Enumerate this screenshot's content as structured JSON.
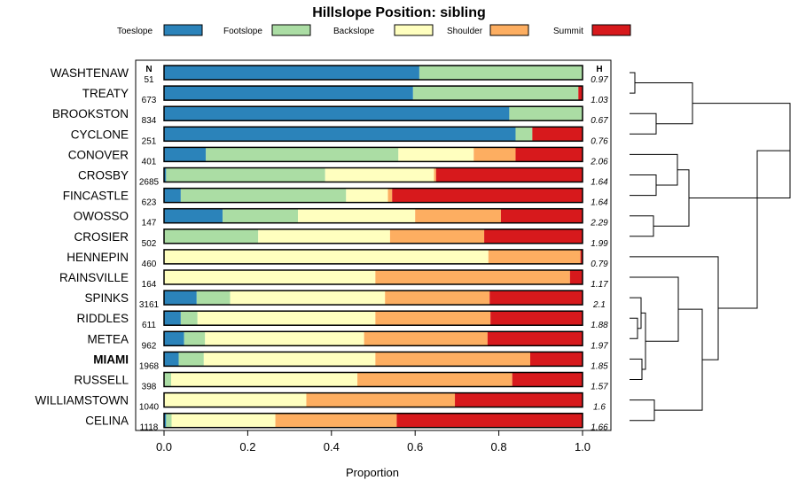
{
  "chart_data": {
    "type": "bar",
    "stacked": true,
    "orientation": "horizontal",
    "title": "Hillslope Position: sibling",
    "xlabel": "Proportion",
    "xlim": [
      0,
      1
    ],
    "xticks": [
      "0.0",
      "0.2",
      "0.4",
      "0.6",
      "0.8",
      "1.0"
    ],
    "n_header": "N",
    "h_header": "H",
    "highlight": "MIAMI",
    "legend": [
      {
        "name": "Toeslope",
        "color": "#2b83ba"
      },
      {
        "name": "Footslope",
        "color": "#abdda4"
      },
      {
        "name": "Backslope",
        "color": "#ffffbf"
      },
      {
        "name": "Shoulder",
        "color": "#fdae61"
      },
      {
        "name": "Summit",
        "color": "#d7191c"
      }
    ],
    "categories": [
      "WASHTENAW",
      "TREATY",
      "BROOKSTON",
      "CYCLONE",
      "CONOVER",
      "CROSBY",
      "FINCASTLE",
      "OWOSSO",
      "CROSIER",
      "HENNEPIN",
      "RAINSVILLE",
      "SPINKS",
      "RIDDLES",
      "METEA",
      "MIAMI",
      "RUSSELL",
      "WILLIAMSTOWN",
      "CELINA"
    ],
    "n": [
      "51",
      "673",
      "834",
      "251",
      "401",
      "2685",
      "623",
      "147",
      "502",
      "460",
      "164",
      "3161",
      "611",
      "962",
      "1968",
      "398",
      "1040",
      "1118"
    ],
    "h": [
      "0.97",
      "1.03",
      "0.67",
      "0.76",
      "2.06",
      "1.64",
      "1.64",
      "2.29",
      "1.99",
      "0.79",
      "1.17",
      "2.1",
      "1.88",
      "1.97",
      "1.85",
      "1.57",
      "1.6",
      "1.66"
    ],
    "series": [
      {
        "name": "Toeslope",
        "values": [
          0.61,
          0.595,
          0.825,
          0.84,
          0.1,
          0.005,
          0.04,
          0.14,
          0.0,
          0.0,
          0.0,
          0.078,
          0.04,
          0.048,
          0.035,
          0.0,
          0.0,
          0.005
        ]
      },
      {
        "name": "Footslope",
        "values": [
          0.39,
          0.395,
          0.175,
          0.04,
          0.46,
          0.38,
          0.395,
          0.18,
          0.225,
          0.0,
          0.0,
          0.08,
          0.04,
          0.05,
          0.06,
          0.017,
          0.0,
          0.013
        ]
      },
      {
        "name": "Backslope",
        "values": [
          0.0,
          0.0,
          0.0,
          0.0,
          0.18,
          0.26,
          0.1,
          0.28,
          0.315,
          0.775,
          0.505,
          0.37,
          0.425,
          0.38,
          0.41,
          0.445,
          0.34,
          0.248
        ]
      },
      {
        "name": "Shoulder",
        "values": [
          0.0,
          0.0,
          0.0,
          0.0,
          0.1,
          0.005,
          0.01,
          0.205,
          0.225,
          0.22,
          0.465,
          0.25,
          0.275,
          0.295,
          0.37,
          0.37,
          0.355,
          0.29
        ]
      },
      {
        "name": "Summit",
        "values": [
          0.0,
          0.01,
          0.0,
          0.12,
          0.16,
          0.35,
          0.455,
          0.195,
          0.235,
          0.005,
          0.03,
          0.222,
          0.22,
          0.227,
          0.125,
          0.168,
          0.305,
          0.444
        ]
      }
    ]
  }
}
